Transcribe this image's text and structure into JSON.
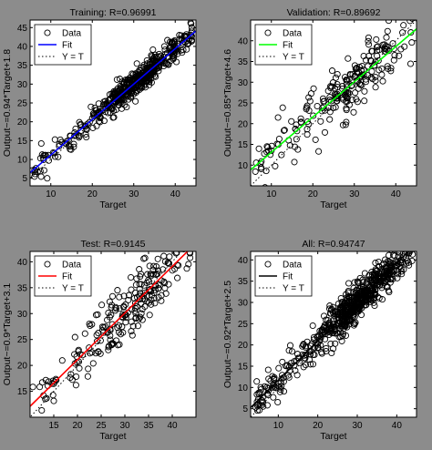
{
  "chart_data": [
    {
      "type": "scatter",
      "title": "Training: R=0.96991",
      "xlabel": "Target",
      "ylabel": "Output~=0.94*Target+1.8",
      "xlim": [
        5,
        45
      ],
      "ylim": [
        3,
        47
      ],
      "xticks": [
        10,
        20,
        30,
        40
      ],
      "yticks": [
        5,
        10,
        15,
        20,
        25,
        30,
        35,
        40,
        45
      ],
      "grid": false,
      "legend_position": "top-left",
      "fit": {
        "slope": 0.94,
        "intercept": 1.8,
        "color": "#0000ff"
      },
      "legend": [
        "Data",
        "Fit",
        "Y = T"
      ],
      "cloud": {
        "n": 520,
        "xmin": 5.5,
        "xmax": 44,
        "mode": 31,
        "spread": 1.7,
        "seed": 11
      }
    },
    {
      "type": "scatter",
      "title": "Validation: R=0.89692",
      "xlabel": "Target",
      "ylabel": "Output~=0.85*Target+4.6",
      "xlim": [
        5,
        45
      ],
      "ylim": [
        5,
        45
      ],
      "xticks": [
        10,
        20,
        30,
        40
      ],
      "yticks": [
        10,
        15,
        20,
        25,
        30,
        35,
        40
      ],
      "grid": false,
      "legend_position": "top-left",
      "fit": {
        "slope": 0.85,
        "intercept": 4.6,
        "color": "#00ff00"
      },
      "legend": [
        "Data",
        "Fit",
        "Y = T"
      ],
      "cloud": {
        "n": 230,
        "xmin": 6,
        "xmax": 44,
        "mode": 30,
        "spread": 3.2,
        "seed": 23
      }
    },
    {
      "type": "scatter",
      "title": "Test: R=0.9145",
      "xlabel": "Target",
      "ylabel": "Output~=0.9*Target+3.1",
      "xlim": [
        10,
        45
      ],
      "ylim": [
        10,
        42
      ],
      "xticks": [
        15,
        20,
        25,
        30,
        35,
        40
      ],
      "yticks": [
        15,
        20,
        25,
        30,
        35,
        40
      ],
      "grid": false,
      "legend_position": "top-left",
      "fit": {
        "slope": 0.9,
        "intercept": 3.1,
        "color": "#ff0000"
      },
      "legend": [
        "Data",
        "Fit",
        "Y = T"
      ],
      "cloud": {
        "n": 230,
        "xmin": 10.5,
        "xmax": 44,
        "mode": 31,
        "spread": 2.8,
        "seed": 37
      }
    },
    {
      "type": "scatter",
      "title": "All: R=0.94747",
      "xlabel": "Target",
      "ylabel": "Output~=0.92*Target+2.5",
      "xlim": [
        3,
        45
      ],
      "ylim": [
        3,
        42
      ],
      "xticks": [
        10,
        20,
        30,
        40
      ],
      "yticks": [
        5,
        10,
        15,
        20,
        25,
        30,
        35,
        40
      ],
      "grid": false,
      "legend_position": "top-left",
      "fit": {
        "slope": 0.92,
        "intercept": 2.5,
        "color": "#000000"
      },
      "legend": [
        "Data",
        "Fit",
        "Y = T"
      ],
      "cloud": {
        "n": 650,
        "xmin": 4,
        "xmax": 44,
        "mode": 31,
        "spread": 2.2,
        "seed": 53
      }
    }
  ]
}
